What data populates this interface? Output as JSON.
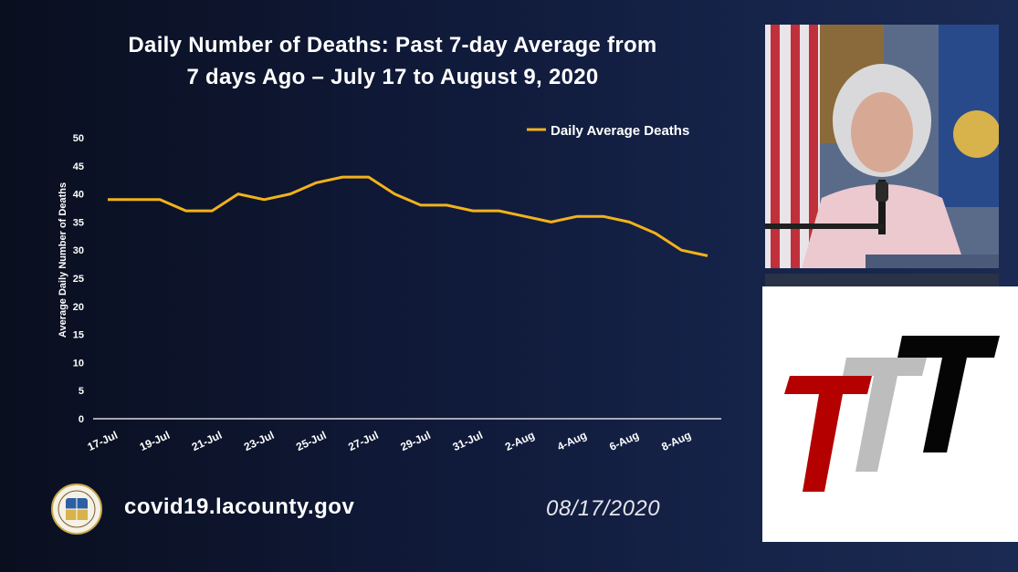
{
  "slide": {
    "title_line1": "Daily Number of Deaths: Past 7-day Average from",
    "title_line2": "7 days Ago – July 17 to August 9, 2020",
    "website": "covid19.lacounty.gov",
    "date": "08/17/2020"
  },
  "colors": {
    "line": "#f2b21a",
    "axis": "#d8d8de",
    "text": "#ffffff"
  },
  "chart_data": {
    "type": "line",
    "ylabel": "Average Daily Number of Deaths",
    "xlabel": "",
    "ylim": [
      0,
      50
    ],
    "yticks": [
      0,
      5,
      10,
      15,
      20,
      25,
      30,
      35,
      40,
      45,
      50
    ],
    "grid": false,
    "legend": "top-right",
    "x": [
      "17-Jul",
      "18-Jul",
      "19-Jul",
      "20-Jul",
      "21-Jul",
      "22-Jul",
      "23-Jul",
      "24-Jul",
      "25-Jul",
      "26-Jul",
      "27-Jul",
      "28-Jul",
      "29-Jul",
      "30-Jul",
      "31-Jul",
      "1-Aug",
      "2-Aug",
      "3-Aug",
      "4-Aug",
      "5-Aug",
      "6-Aug",
      "7-Aug",
      "8-Aug",
      "9-Aug"
    ],
    "xtick_labels": [
      "17-Jul",
      "19-Jul",
      "21-Jul",
      "23-Jul",
      "25-Jul",
      "27-Jul",
      "29-Jul",
      "31-Jul",
      "2-Aug",
      "4-Aug",
      "6-Aug",
      "8-Aug"
    ],
    "series": [
      {
        "name": "Daily Average Deaths",
        "values": [
          39,
          39,
          39,
          37,
          37,
          40,
          39,
          40,
          42,
          43,
          43,
          40,
          38,
          38,
          37,
          37,
          36,
          35,
          36,
          36,
          35,
          33,
          30,
          29
        ]
      }
    ]
  }
}
